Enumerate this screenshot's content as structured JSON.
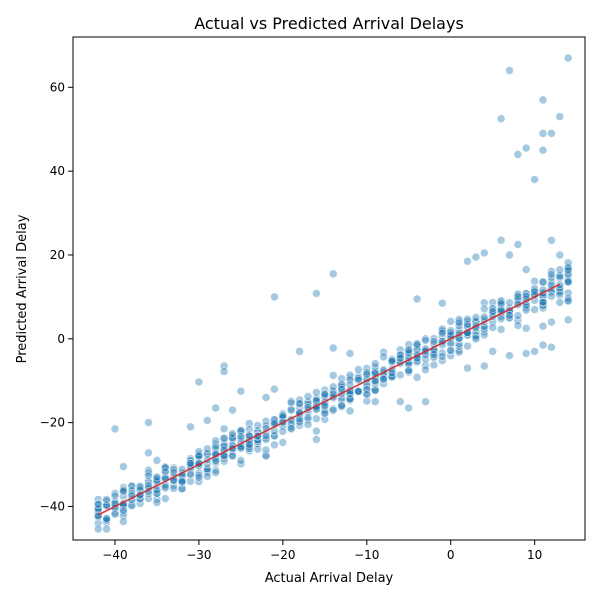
{
  "chart_data": {
    "type": "scatter",
    "title": "Actual vs Predicted Arrival Delays",
    "xlabel": "Actual Arrival Delay",
    "ylabel": "Predicted Arrival Delay",
    "xlim": [
      -45,
      16
    ],
    "ylim": [
      -48,
      72
    ],
    "xticks": [
      -40,
      -30,
      -20,
      -10,
      0,
      10
    ],
    "yticks": [
      -40,
      -20,
      0,
      20,
      40,
      60
    ],
    "grid": false,
    "legend": "none",
    "point_color": "#1f77b4",
    "line_color": "#d62728",
    "reference_line": {
      "x": [
        -42,
        13
      ],
      "y": [
        -42,
        13
      ]
    },
    "outliers": [
      {
        "x": 14,
        "y": 67
      },
      {
        "x": 7,
        "y": 64
      },
      {
        "x": 11,
        "y": 57
      },
      {
        "x": 6,
        "y": 52.5
      },
      {
        "x": 13,
        "y": 53
      },
      {
        "x": 12,
        "y": 49
      },
      {
        "x": 11,
        "y": 49
      },
      {
        "x": 9,
        "y": 45.5
      },
      {
        "x": 11,
        "y": 45
      },
      {
        "x": 8,
        "y": 44
      },
      {
        "x": 10,
        "y": 38
      },
      {
        "x": 6,
        "y": 23.5
      },
      {
        "x": 8,
        "y": 22.5
      },
      {
        "x": 12,
        "y": 23.5
      },
      {
        "x": 13,
        "y": 20
      },
      {
        "x": 7,
        "y": 20
      },
      {
        "x": 4,
        "y": 20.5
      },
      {
        "x": 3,
        "y": 19.5
      },
      {
        "x": 2,
        "y": 18.5
      },
      {
        "x": 9,
        "y": 16.5
      },
      {
        "x": -14,
        "y": 15.5
      },
      {
        "x": -16,
        "y": 10.8
      },
      {
        "x": -21,
        "y": 10
      },
      {
        "x": -4,
        "y": 9.5
      },
      {
        "x": -1,
        "y": 8.5
      },
      {
        "x": -18,
        "y": -3
      },
      {
        "x": -14,
        "y": -2.2
      },
      {
        "x": -12,
        "y": -3.5
      },
      {
        "x": -27,
        "y": -6.5
      },
      {
        "x": -27,
        "y": -7.8
      },
      {
        "x": -30,
        "y": -10.3
      },
      {
        "x": -25,
        "y": -12.5
      },
      {
        "x": -21,
        "y": -12
      },
      {
        "x": -22,
        "y": -14
      },
      {
        "x": -28,
        "y": -16.5
      },
      {
        "x": -29,
        "y": -19.5
      },
      {
        "x": -31,
        "y": -21
      },
      {
        "x": -26,
        "y": -17
      },
      {
        "x": -36,
        "y": -20
      },
      {
        "x": -40,
        "y": -21.5
      },
      {
        "x": -35,
        "y": -29
      },
      {
        "x": -39,
        "y": -30.5
      },
      {
        "x": -36,
        "y": -27.2
      },
      {
        "x": -22,
        "y": -28
      },
      {
        "x": -25,
        "y": -29
      },
      {
        "x": -16,
        "y": -24
      },
      {
        "x": -16,
        "y": -22
      },
      {
        "x": -9,
        "y": -15
      },
      {
        "x": -6,
        "y": -15
      },
      {
        "x": -5,
        "y": -16.5
      },
      {
        "x": -3,
        "y": -15
      },
      {
        "x": 2,
        "y": -7
      },
      {
        "x": 4,
        "y": -6.5
      },
      {
        "x": 5,
        "y": -3
      },
      {
        "x": 7,
        "y": -4
      },
      {
        "x": 9,
        "y": -3.5
      },
      {
        "x": 10,
        "y": -3
      },
      {
        "x": 11,
        "y": -1.5
      },
      {
        "x": 12,
        "y": -2
      },
      {
        "x": 11,
        "y": 3
      },
      {
        "x": 12,
        "y": 4
      },
      {
        "x": 14,
        "y": 4.5
      },
      {
        "x": 9,
        "y": 2.5
      }
    ],
    "main_band": {
      "x_range": [
        -42,
        14
      ],
      "trend": "predicted approximately equals actual",
      "spread": 4
    }
  }
}
